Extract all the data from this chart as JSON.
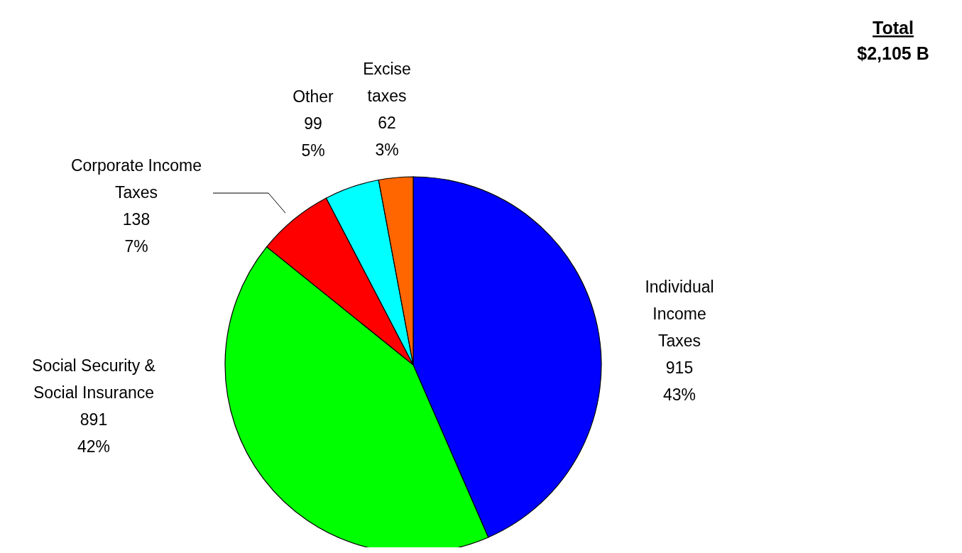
{
  "chart_data": {
    "type": "pie",
    "categories": [
      "Individual Income Taxes",
      "Social Security & Social Insurance",
      "Corporate Income Taxes",
      "Other",
      "Excise taxes"
    ],
    "values": [
      915,
      891,
      138,
      99,
      62
    ],
    "colors": [
      "#0000ff",
      "#00ff00",
      "#ff0000",
      "#00ffff",
      "#ff6600"
    ],
    "value_labels": [
      "915\n43%",
      "891\n42%",
      "138\n7%",
      "99\n5%",
      "62\n3%"
    ],
    "annotations": [
      "Total",
      "$2,105 B"
    ]
  }
}
